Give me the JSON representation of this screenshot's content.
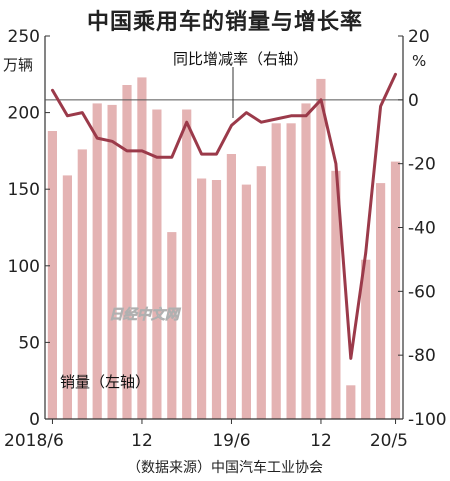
{
  "chart_data": {
    "type": "bar+line",
    "title": "中国乘用车的销量与增长率",
    "source": "（数据来源）中国汽车工业协会",
    "watermark": "日经中文网",
    "x_labels": [
      "2018/6",
      "12",
      "19/6",
      "12",
      "20/5"
    ],
    "categories": [
      "2018/6",
      "2018/7",
      "2018/8",
      "2018/9",
      "2018/10",
      "2018/11",
      "2018/12",
      "2019/1",
      "2019/2",
      "2019/3",
      "2019/4",
      "2019/5",
      "2019/6",
      "2019/7",
      "2019/8",
      "2019/9",
      "2019/10",
      "2019/11",
      "2019/12",
      "2020/1",
      "2020/2",
      "2020/3",
      "2020/4",
      "2020/5"
    ],
    "left_axis": {
      "unit_label": "万辆",
      "range": [
        0,
        250
      ],
      "ticks": [
        "0",
        "50",
        "100",
        "150",
        "200",
        "250"
      ]
    },
    "right_axis": {
      "unit_label": "%",
      "range": [
        -100,
        20
      ],
      "ticks": [
        "-100",
        "-80",
        "-60",
        "-40",
        "-20",
        "0",
        "20"
      ]
    },
    "series": [
      {
        "name": "销量（左轴）",
        "type": "bar",
        "axis": "left",
        "color": "#e4b3b3",
        "values": [
          188,
          159,
          176,
          206,
          205,
          218,
          223,
          202,
          122,
          202,
          157,
          156,
          173,
          153,
          165,
          193,
          193,
          206,
          222,
          162,
          22,
          104,
          154,
          168
        ]
      },
      {
        "name": "同比增减率（右轴）",
        "type": "line",
        "axis": "right",
        "color": "#9b3a4a",
        "values": [
          3,
          -5,
          -4,
          -12,
          -13,
          -16,
          -16,
          -18,
          -18,
          -7,
          -17,
          -17,
          -8,
          -4,
          -7,
          -6,
          -5,
          -5,
          0,
          -20,
          -81,
          -48,
          -2,
          8
        ]
      }
    ]
  }
}
